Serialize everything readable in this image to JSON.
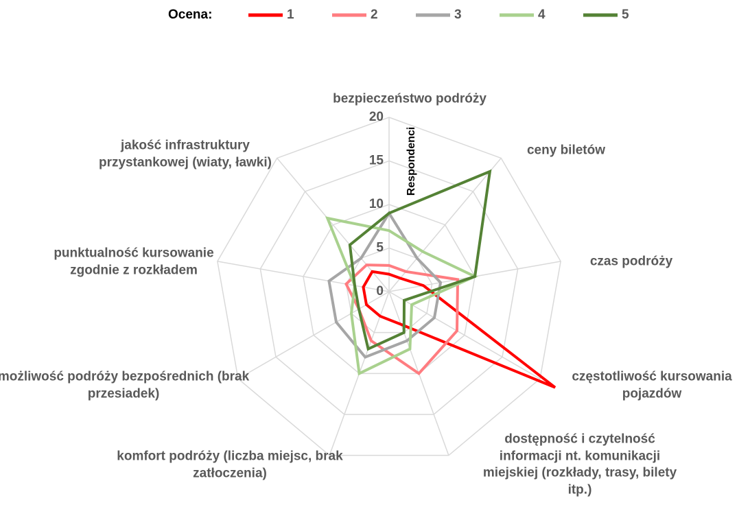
{
  "chart_data": {
    "type": "radar",
    "legend_title": "Ocena:",
    "axis_label": "Respondenci",
    "categories": [
      "bezpieczeństwo podróży",
      "ceny biletów",
      "czas podróży",
      "częstotliwość kursowania pojazdów",
      "dostępność i czytelność informacji nt. komunikacji miejskiej (rozkłady, trasy, bilety itp.)",
      "komfort podróży (liczba miejsc, brak zatłoczenia)",
      "możliwość podróży bezpośrednich (brak przesiadek)",
      "punktualność kursowanie zgodnie z rozkładem",
      "jakość infrastruktury przystankowej (wiaty, ławki)"
    ],
    "series": [
      {
        "name": "1",
        "color": "#ff0000",
        "values": [
          2,
          2,
          4,
          22,
          4,
          3,
          3,
          3,
          3
        ]
      },
      {
        "name": "2",
        "color": "#ff7c80",
        "values": [
          3,
          3,
          8,
          9,
          10,
          6,
          4,
          5,
          4
        ]
      },
      {
        "name": "3",
        "color": "#a6a6a6",
        "values": [
          9,
          5,
          6,
          6,
          6,
          8,
          7,
          7,
          5
        ]
      },
      {
        "name": "4",
        "color": "#a9d18e",
        "values": [
          7,
          6,
          10,
          3,
          7,
          10,
          5,
          4,
          11
        ]
      },
      {
        "name": "5",
        "color": "#548235",
        "values": [
          9,
          18,
          10,
          2,
          5,
          7,
          4,
          4,
          7
        ]
      }
    ],
    "ylim": [
      0,
      20
    ],
    "yticks": [
      0,
      5,
      10,
      15,
      20
    ],
    "grid": true,
    "legend": "top"
  }
}
